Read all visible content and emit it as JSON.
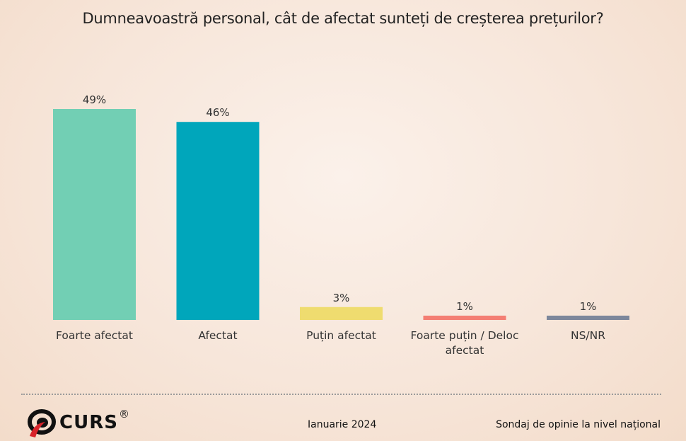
{
  "chart_data": {
    "type": "bar",
    "title": "Dumneavoastră personal, cât de afectat sunteți de creșterea prețurilor?",
    "categories": [
      "Foarte afectat",
      "Afectat",
      "Puțin afectat",
      "Foarte puțin / Deloc afectat",
      "NS/NR"
    ],
    "category_lines": [
      [
        "Foarte afectat"
      ],
      [
        "Afectat"
      ],
      [
        "Puțin afectat"
      ],
      [
        "Foarte puțin / Deloc",
        "afectat"
      ],
      [
        "NS/NR"
      ]
    ],
    "values": [
      49,
      46,
      3,
      1,
      1
    ],
    "data_labels": [
      "49%",
      "46%",
      "3%",
      "1%",
      "1%"
    ],
    "colors": [
      "#72cfb4",
      "#00a6bb",
      "#efdc6f",
      "#f47e73",
      "#7d879b"
    ],
    "ylim": [
      0,
      50
    ],
    "grid": false,
    "legend": "none",
    "axes_visible": false
  },
  "footer": {
    "logo": "CURS",
    "logo_mark": "®",
    "date": "Ianuarie 2024",
    "source": "Sondaj de opinie la nivel național"
  }
}
